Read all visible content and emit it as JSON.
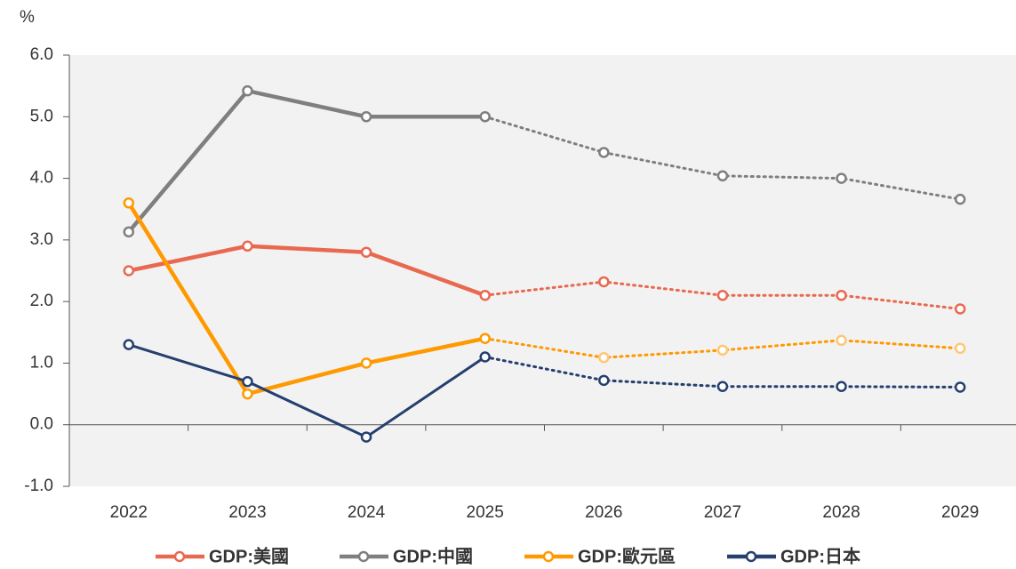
{
  "chart_data": {
    "type": "line",
    "y_axis_label": "%",
    "categories": [
      "2022",
      "2023",
      "2024",
      "2025",
      "2026",
      "2027",
      "2028",
      "2029"
    ],
    "forecast_from": "2025",
    "series": [
      {
        "name": "GDP:美國",
        "color": "#e8694f",
        "values": [
          2.5,
          2.9,
          2.8,
          2.1,
          2.32,
          2.1,
          2.1,
          1.88
        ]
      },
      {
        "name": "GDP:中國",
        "color": "#7f7f7f",
        "values": [
          3.13,
          5.42,
          5.0,
          5.0,
          4.42,
          4.04,
          4.0,
          3.66
        ]
      },
      {
        "name": "GDP:歐元區",
        "color": "#ff9900",
        "values": [
          3.6,
          0.5,
          1.0,
          1.4,
          1.09,
          1.21,
          1.37,
          1.24
        ]
      },
      {
        "name": "GDP:日本",
        "color": "#253f6e",
        "values": [
          1.3,
          0.7,
          -0.2,
          1.1,
          0.72,
          0.62,
          0.62,
          0.61
        ]
      }
    ],
    "ylim": [
      -1,
      6
    ],
    "yticks": [
      {
        "value": -1,
        "label": "-1.0"
      },
      {
        "value": 0,
        "label": "0.0"
      },
      {
        "value": 1,
        "label": "1.0"
      },
      {
        "value": 2,
        "label": "2.0"
      },
      {
        "value": 3,
        "label": "3.0"
      },
      {
        "value": 4,
        "label": "4.0"
      },
      {
        "value": 5,
        "label": "5.0"
      },
      {
        "value": 6,
        "label": "6.0"
      }
    ],
    "legend": "bottom"
  }
}
